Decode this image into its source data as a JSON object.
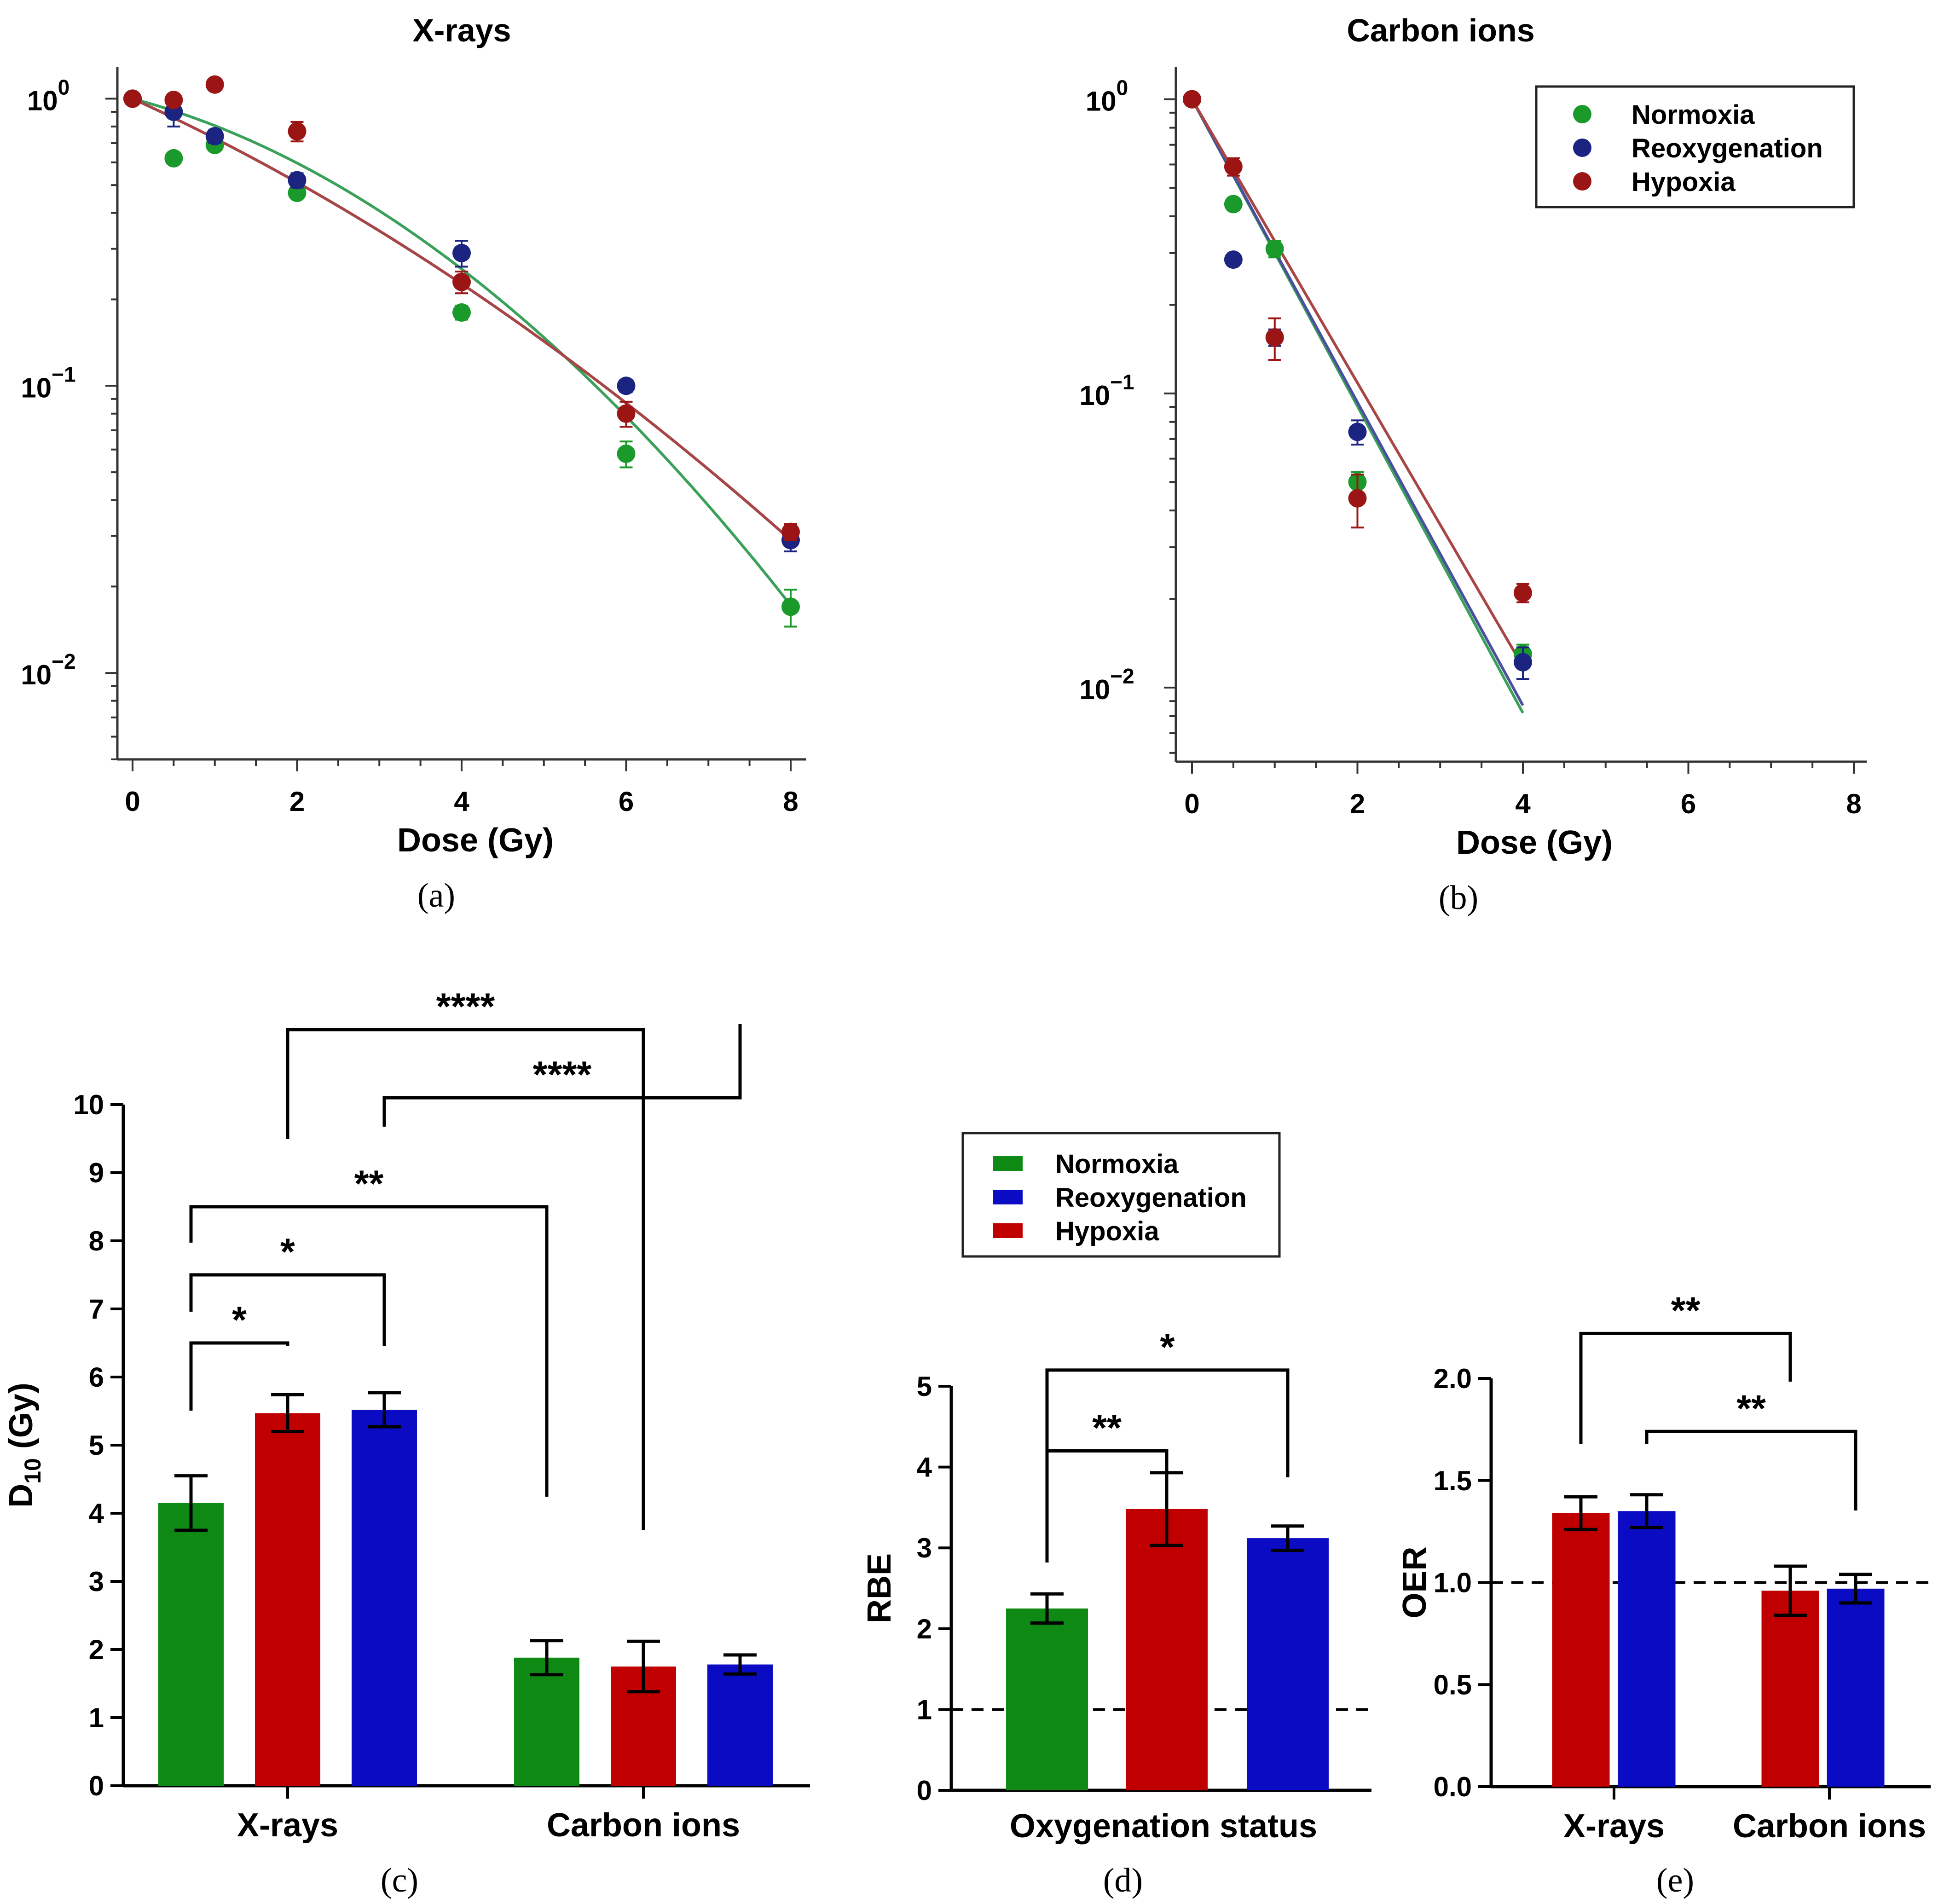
{
  "colors": {
    "normoxia_dot": "#1a9a2a",
    "reoxygenation_dot": "#1b2480",
    "hypoxia_dot": "#9b1515",
    "normoxia_bar": "#0e8a14",
    "reoxygenation_bar": "#0b0bc4",
    "hypoxia_bar": "#c00000",
    "normoxia_line": "#3aa05a",
    "reoxygenation_line": "#4a4fa0",
    "hypoxia_line": "#a84545"
  },
  "legend_survival": [
    "Normoxia",
    "Reoxygenation",
    "Hypoxia"
  ],
  "legend_bar": [
    "Normoxia",
    "Reoxygenation",
    "Hypoxia"
  ],
  "chart_data": [
    {
      "id": "a",
      "type": "scatter",
      "caption": "(a)",
      "title": "X-rays",
      "xlabel": "Dose (Gy)",
      "ylabel": "",
      "yscale": "log",
      "xlim": [
        0,
        8
      ],
      "ylim": [
        0.005,
        1.2
      ],
      "xticks": [
        "0",
        "2",
        "4",
        "6",
        "8"
      ],
      "yticks": [
        {
          "base": "10",
          "exp": "0",
          "value": 1
        },
        {
          "base": "10",
          "exp": "−1",
          "value": 0.1
        },
        {
          "base": "10",
          "exp": "−2",
          "value": 0.01
        }
      ],
      "series": [
        {
          "name": "Normoxia",
          "color_key": "normoxia_dot",
          "x": [
            0,
            0.5,
            1,
            2,
            4,
            6,
            8
          ],
          "y": [
            1.0,
            0.62,
            0.69,
            0.47,
            0.18,
            0.058,
            0.017
          ],
          "err": [
            0,
            0.02,
            0.03,
            0.02,
            0.01,
            0.006,
            0.0025
          ]
        },
        {
          "name": "Reoxygenation",
          "color_key": "reoxygenation_dot",
          "x": [
            0,
            0.5,
            1,
            2,
            4,
            6,
            8
          ],
          "y": [
            1.0,
            0.9,
            0.74,
            0.52,
            0.29,
            0.1,
            0.029
          ],
          "err": [
            0,
            0.1,
            0.04,
            0.03,
            0.03,
            0.005,
            0.0025
          ]
        },
        {
          "name": "Hypoxia",
          "color_key": "hypoxia_dot",
          "x": [
            0,
            0.5,
            1,
            2,
            4,
            6,
            8
          ],
          "y": [
            1.0,
            0.99,
            1.12,
            0.77,
            0.23,
            0.08,
            0.031
          ],
          "err": [
            0,
            0.04,
            0.04,
            0.06,
            0.02,
            0.008,
            0.002
          ]
        }
      ],
      "fits": [
        {
          "name": "Normoxia",
          "color_key": "normoxia_line",
          "alpha": 0.175,
          "beta": 0.0416
        },
        {
          "name": "Reoxygenation",
          "color_key": "reoxygenation_line",
          "alpha": 0.3,
          "beta": 0.0178
        },
        {
          "name": "Hypoxia",
          "color_key": "hypoxia_line",
          "alpha": 0.3,
          "beta": 0.0178
        }
      ]
    },
    {
      "id": "b",
      "type": "scatter",
      "caption": "(b)",
      "title": "Carbon ions",
      "xlabel": "Dose (Gy)",
      "ylabel": "",
      "yscale": "log",
      "xlim": [
        0,
        8
      ],
      "ylim": [
        0.0056,
        1.2
      ],
      "xticks": [
        "0",
        "2",
        "4",
        "6",
        "8"
      ],
      "yticks": [
        {
          "base": "10",
          "exp": "0",
          "value": 1
        },
        {
          "base": "10",
          "exp": "−1",
          "value": 0.1
        },
        {
          "base": "10",
          "exp": "−2",
          "value": 0.01
        }
      ],
      "legend_position": "top-right",
      "series": [
        {
          "name": "Normoxia",
          "color_key": "normoxia_dot",
          "x": [
            0,
            0.5,
            1,
            2,
            4
          ],
          "y": [
            1.0,
            0.44,
            0.31,
            0.05,
            0.013
          ],
          "err": [
            0,
            0.02,
            0.02,
            0.004,
            0.001
          ]
        },
        {
          "name": "Reoxygenation",
          "color_key": "reoxygenation_dot",
          "x": [
            0,
            0.5,
            1,
            2,
            4
          ],
          "y": [
            1.0,
            0.285,
            0.155,
            0.074,
            0.0122
          ],
          "err": [
            0,
            0.01,
            0.01,
            0.007,
            0.0015
          ]
        },
        {
          "name": "Hypoxia",
          "color_key": "hypoxia_dot",
          "x": [
            0,
            0.5,
            1,
            2,
            4
          ],
          "y": [
            1.0,
            0.59,
            0.155,
            0.044,
            0.021
          ],
          "err": [
            0,
            0.04,
            0.025,
            0.009,
            0.0015
          ]
        }
      ],
      "fits": [
        {
          "name": "Normoxia",
          "color_key": "normoxia_line",
          "x": [
            0,
            4
          ],
          "y": [
            1.0,
            0.0082
          ]
        },
        {
          "name": "Reoxygenation",
          "color_key": "reoxygenation_line",
          "x": [
            0,
            4
          ],
          "y": [
            1.0,
            0.0087
          ]
        },
        {
          "name": "Hypoxia",
          "color_key": "hypoxia_line",
          "x": [
            0,
            4
          ],
          "y": [
            1.0,
            0.0118
          ]
        }
      ]
    },
    {
      "id": "c",
      "type": "bar",
      "caption": "(c)",
      "title": "",
      "ylabel_base": "D",
      "ylabel_sub": "10",
      "ylabel_rest": " (Gy)",
      "ylim": [
        0,
        10
      ],
      "yticks": [
        "0",
        "1",
        "2",
        "3",
        "4",
        "5",
        "6",
        "7",
        "8",
        "9",
        "10"
      ],
      "categories": [
        "X-rays",
        "Carbon ions"
      ],
      "bars": [
        {
          "group": 0,
          "name": "Normoxia",
          "color_key": "normoxia_bar",
          "value": 4.15,
          "err": 0.4
        },
        {
          "group": 0,
          "name": "Hypoxia",
          "color_key": "hypoxia_bar",
          "value": 5.47,
          "err": 0.27
        },
        {
          "group": 0,
          "name": "Reoxygenation",
          "color_key": "reoxygenation_bar",
          "value": 5.52,
          "err": 0.25
        },
        {
          "group": 1,
          "name": "Normoxia",
          "color_key": "normoxia_bar",
          "value": 1.88,
          "err": 0.25
        },
        {
          "group": 1,
          "name": "Hypoxia",
          "color_key": "hypoxia_bar",
          "value": 1.75,
          "err": 0.37
        },
        {
          "group": 1,
          "name": "Reoxygenation",
          "color_key": "reoxygenation_bar",
          "value": 1.78,
          "err": 0.14
        }
      ],
      "significance": [
        {
          "label": "*",
          "from": 0,
          "to": 1,
          "level": 6.5
        },
        {
          "label": "*",
          "from": 0,
          "to": 2,
          "level": 7.5
        },
        {
          "label": "**",
          "from": 0,
          "to": 3,
          "level": 8.5
        },
        {
          "label": "****",
          "from": 2,
          "to": 5,
          "level": 10.1
        },
        {
          "label": "****",
          "from": 1,
          "to": 4,
          "level": 11.1
        }
      ]
    },
    {
      "id": "d",
      "type": "bar",
      "caption": "(d)",
      "title": "",
      "ylabel": "RBE",
      "xlabel": "Oxygenation status",
      "ylim": [
        0,
        5
      ],
      "yticks": [
        "0",
        "1",
        "2",
        "3",
        "4",
        "5"
      ],
      "reference_line": 1,
      "legend_position": "top",
      "bars": [
        {
          "name": "Normoxia",
          "color_key": "normoxia_bar",
          "value": 2.25,
          "err": 0.18
        },
        {
          "name": "Hypoxia",
          "color_key": "hypoxia_bar",
          "value": 3.48,
          "err": 0.45
        },
        {
          "name": "Reoxygenation",
          "color_key": "reoxygenation_bar",
          "value": 3.12,
          "err": 0.15
        }
      ],
      "significance": [
        {
          "label": "**",
          "from": 0,
          "to": 1,
          "level": 4.2
        },
        {
          "label": "*",
          "from": 0,
          "to": 2,
          "level": 5.2
        }
      ]
    },
    {
      "id": "e",
      "type": "bar",
      "caption": "(e)",
      "title": "",
      "ylabel": "OER",
      "ylim": [
        0,
        2
      ],
      "yticks": [
        "0.0",
        "0.5",
        "1.0",
        "1.5",
        "2.0"
      ],
      "reference_line": 1,
      "categories": [
        "X-rays",
        "Carbon ions"
      ],
      "bars": [
        {
          "group": 0,
          "name": "Hypoxia",
          "color_key": "hypoxia_bar",
          "value": 1.34,
          "err": 0.08
        },
        {
          "group": 0,
          "name": "Reoxygenation",
          "color_key": "reoxygenation_bar",
          "value": 1.35,
          "err": 0.08
        },
        {
          "group": 1,
          "name": "Hypoxia",
          "color_key": "hypoxia_bar",
          "value": 0.96,
          "err": 0.12
        },
        {
          "group": 1,
          "name": "Reoxygenation",
          "color_key": "reoxygenation_bar",
          "value": 0.97,
          "err": 0.07
        }
      ],
      "significance": [
        {
          "label": "**",
          "from": 0,
          "to": 2,
          "level": 2.22
        },
        {
          "label": "**",
          "from": 1,
          "to": 3,
          "level": 1.74
        }
      ]
    }
  ]
}
